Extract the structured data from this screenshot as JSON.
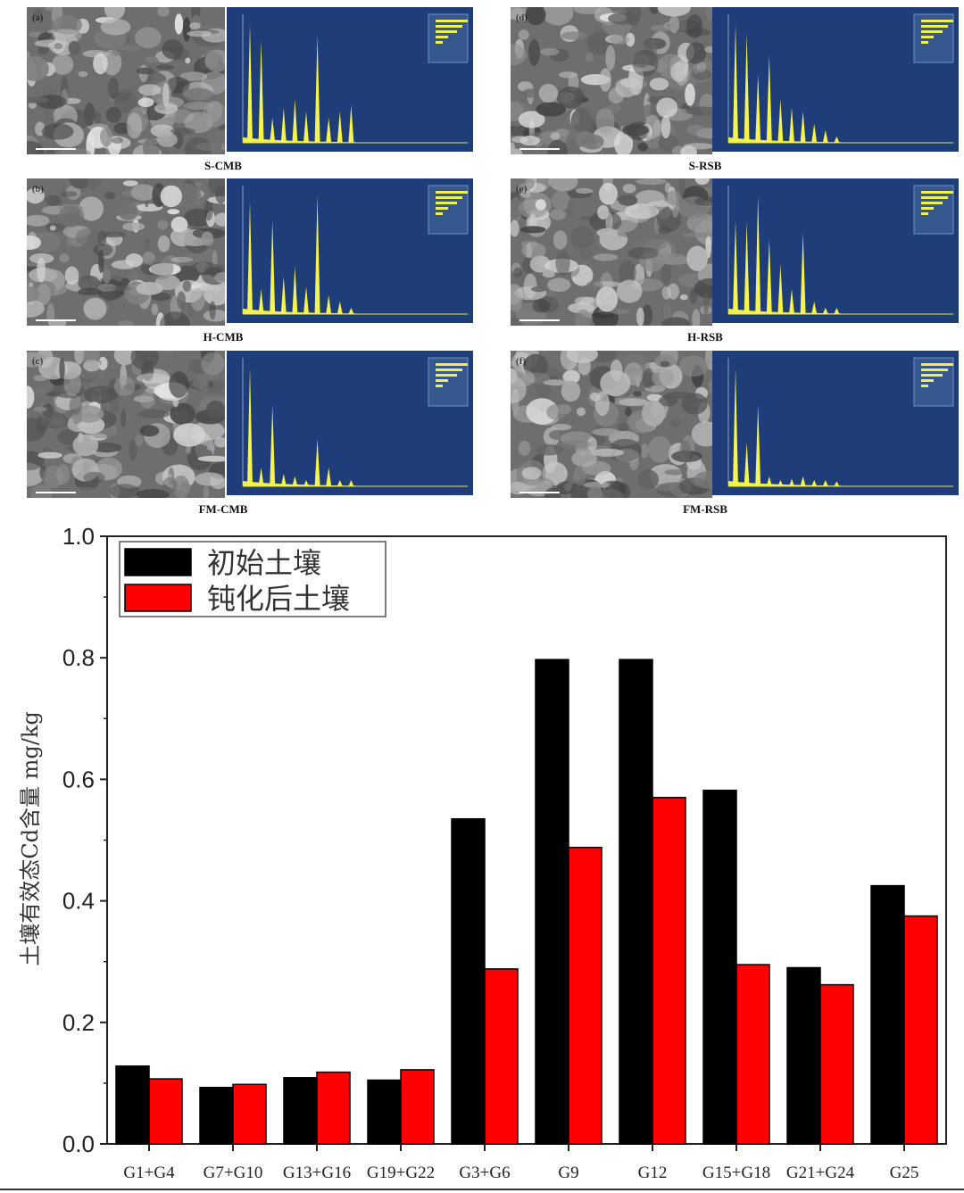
{
  "panels": [
    {
      "id": "a",
      "letter": "(a)",
      "caption": "S-CMB",
      "edx_peaks": [
        0.95,
        0.82,
        0.2,
        0.28,
        0.35,
        0.25,
        0.86,
        0.2,
        0.25,
        0.3
      ]
    },
    {
      "id": "d",
      "letter": "(d)",
      "caption": "S-RSB",
      "edx_peaks": [
        0.95,
        0.88,
        0.55,
        0.7,
        0.35,
        0.28,
        0.25,
        0.15,
        0.1,
        0.05
      ]
    },
    {
      "id": "b",
      "letter": "(b)",
      "caption": "H-CMB",
      "edx_peaks": [
        0.9,
        0.2,
        0.75,
        0.3,
        0.38,
        0.22,
        0.95,
        0.15,
        0.1,
        0.05
      ]
    },
    {
      "id": "e",
      "letter": "(e)",
      "caption": "H-RSB",
      "edx_peaks": [
        0.75,
        0.74,
        0.95,
        0.6,
        0.4,
        0.2,
        0.65,
        0.1,
        0.05,
        0.05
      ]
    },
    {
      "id": "c",
      "letter": "(c)",
      "caption": "FM-CMB",
      "edx_peaks": [
        0.95,
        0.15,
        0.65,
        0.1,
        0.08,
        0.05,
        0.38,
        0.15,
        0.05,
        0.05
      ]
    },
    {
      "id": "f",
      "letter": "(f)",
      "caption": "FM-RSB",
      "edx_peaks": [
        0.95,
        0.35,
        0.65,
        0.08,
        0.05,
        0.06,
        0.08,
        0.05,
        0.05,
        0.04
      ]
    }
  ],
  "chart_data": {
    "type": "bar",
    "title": "",
    "xlabel": "",
    "ylabel": "土壤有效态Cd含量 mg/kg",
    "ylim": [
      0.0,
      1.0
    ],
    "yticks": [
      "0.0",
      "0.2",
      "0.4",
      "0.6",
      "0.8",
      "1.0"
    ],
    "categories": [
      "G1+G4",
      "G7+G10",
      "G13+G16",
      "G19+G22",
      "G3+G6",
      "G9",
      "G12",
      "G15+G18",
      "G21+G24",
      "G25"
    ],
    "series": [
      {
        "name": "初始土壤",
        "color": "#000000",
        "values": [
          0.128,
          0.093,
          0.109,
          0.105,
          0.535,
          0.797,
          0.797,
          0.582,
          0.29,
          0.425
        ]
      },
      {
        "name": "钝化后土壤",
        "color": "#ff0000",
        "values": [
          0.107,
          0.098,
          0.118,
          0.122,
          0.288,
          0.488,
          0.57,
          0.295,
          0.262,
          0.375
        ]
      }
    ],
    "legend_position": "top-left",
    "grid": false
  }
}
